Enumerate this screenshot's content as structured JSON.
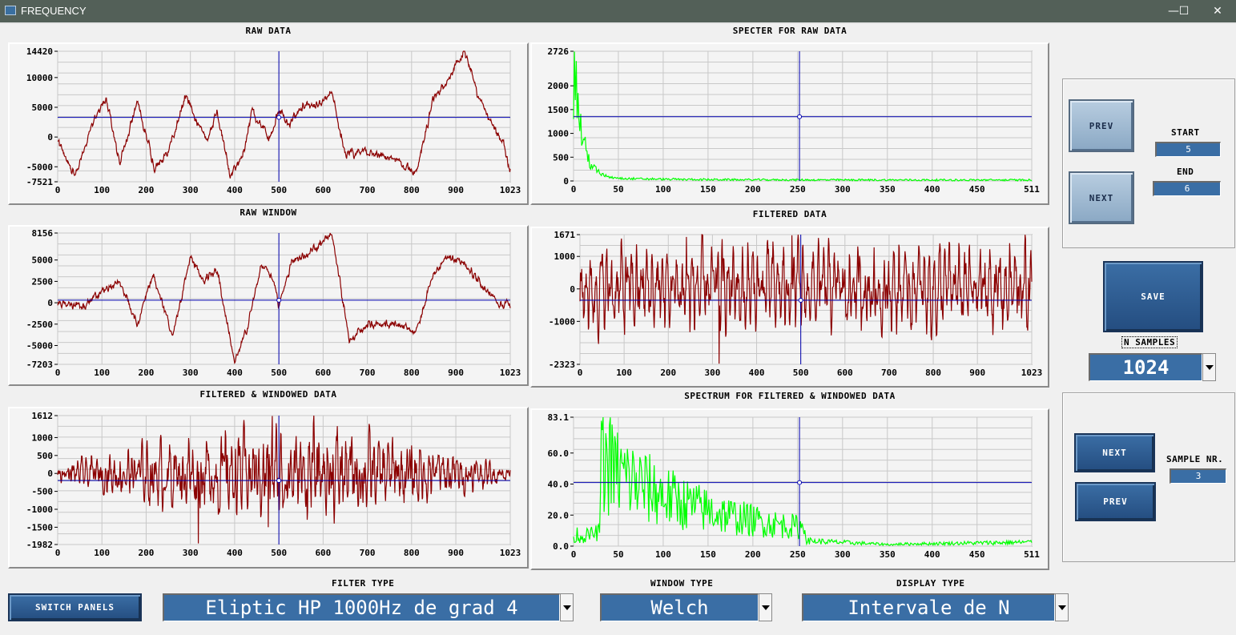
{
  "window": {
    "title": "FREQUENCY",
    "minimize": "—",
    "maximize": "☐",
    "close": "✕"
  },
  "plots": [
    {
      "id": "raw",
      "title": "RAW DATA",
      "color": "#8b0000",
      "x_ticks": [
        "0",
        "100",
        "200",
        "300",
        "400",
        "500",
        "600",
        "700",
        "800",
        "900",
        "1023"
      ],
      "x_range": [
        0,
        1023
      ],
      "y_ticks": [
        "14420",
        "10000",
        "5000",
        "0",
        "-5000",
        "-7521"
      ],
      "y_values": [
        14420,
        10000,
        5000,
        0,
        -5000,
        -7521
      ],
      "y_range": [
        -7521,
        14420
      ],
      "cursor": {
        "x": 500,
        "y": 3300
      }
    },
    {
      "id": "raw_spec",
      "title": "SPECTER FOR RAW DATA",
      "color": "#00ff00",
      "x_ticks": [
        "0",
        "50",
        "100",
        "150",
        "200",
        "250",
        "300",
        "350",
        "400",
        "450",
        "511"
      ],
      "x_range": [
        0,
        511
      ],
      "y_ticks": [
        "2726",
        "2000",
        "1500",
        "1000",
        "500",
        "0"
      ],
      "y_values": [
        2726,
        2000,
        1500,
        1000,
        500,
        0
      ],
      "y_range": [
        0,
        2726
      ],
      "cursor": {
        "x": 252,
        "y": 1350
      }
    },
    {
      "id": "raw_window",
      "title": "RAW WINDOW",
      "color": "#8b0000",
      "x_ticks": [
        "0",
        "100",
        "200",
        "300",
        "400",
        "500",
        "600",
        "700",
        "800",
        "900",
        "1023"
      ],
      "x_range": [
        0,
        1023
      ],
      "y_ticks": [
        "8156",
        "5000",
        "2500",
        "0",
        "-2500",
        "-5000",
        "-7203"
      ],
      "y_values": [
        8156,
        5000,
        2500,
        0,
        -2500,
        -5000,
        -7203
      ],
      "y_range": [
        -7203,
        8156
      ],
      "cursor": {
        "x": 500,
        "y": 300
      }
    },
    {
      "id": "filtered",
      "title": "FILTERED DATA",
      "color": "#8b0000",
      "x_ticks": [
        "0",
        "100",
        "200",
        "300",
        "400",
        "500",
        "600",
        "700",
        "800",
        "900",
        "1023"
      ],
      "x_range": [
        0,
        1023
      ],
      "y_ticks": [
        "1671",
        "1000",
        "0",
        "-1000",
        "-2323"
      ],
      "y_values": [
        1671,
        1000,
        0,
        -1000,
        -2323
      ],
      "y_range": [
        -2323,
        1671
      ],
      "cursor": {
        "x": 500,
        "y": -350
      }
    },
    {
      "id": "filt_win",
      "title": "FILTERED & WINDOWED DATA",
      "color": "#8b0000",
      "x_ticks": [
        "0",
        "100",
        "200",
        "300",
        "400",
        "500",
        "600",
        "700",
        "800",
        "900",
        "1023"
      ],
      "x_range": [
        0,
        1023
      ],
      "y_ticks": [
        "1612",
        "1000",
        "500",
        "0",
        "-500",
        "-1000",
        "-1500",
        "-1982"
      ],
      "y_values": [
        1612,
        1000,
        500,
        0,
        -500,
        -1000,
        -1500,
        -1982
      ],
      "y_range": [
        -1982,
        1612
      ],
      "cursor": {
        "x": 500,
        "y": -200
      }
    },
    {
      "id": "filt_win_spec",
      "title": "SPECTRUM FOR FILTERED & WINDOWED DATA",
      "color": "#00ff00",
      "x_ticks": [
        "0",
        "50",
        "100",
        "150",
        "200",
        "250",
        "300",
        "350",
        "400",
        "450",
        "511"
      ],
      "x_range": [
        0,
        511
      ],
      "y_ticks": [
        "83.1",
        "60.0",
        "40.0",
        "20.0",
        "0.0"
      ],
      "y_values": [
        83.1,
        60.0,
        40.0,
        20.0,
        0.0
      ],
      "y_range": [
        0,
        83.1
      ],
      "cursor": {
        "x": 252,
        "y": 41
      }
    }
  ],
  "interval": {
    "prev": "PREV",
    "next": "NEXT",
    "start_label": "START",
    "start_value": "5",
    "end_label": "END",
    "end_value": "6"
  },
  "save": {
    "label": "SAVE"
  },
  "nsamples": {
    "label": "N SAMPLES",
    "value": "1024"
  },
  "sample": {
    "next": "NEXT",
    "prev": "PREV",
    "label": "SAMPLE NR.",
    "value": "3"
  },
  "bottom": {
    "switch_panels": "SWITCH PANELS",
    "filter_type_label": "FILTER TYPE",
    "filter_type_value": "Eliptic HP 1000Hz de grad 4",
    "window_type_label": "WINDOW TYPE",
    "window_type_value": "Welch",
    "display_type_label": "DISPLAY TYPE",
    "display_type_value": "Intervale de N"
  },
  "colors": {
    "cursor": "#0000b0",
    "grid": "#c8c8c8",
    "control_blue": "#3a6ea5"
  }
}
